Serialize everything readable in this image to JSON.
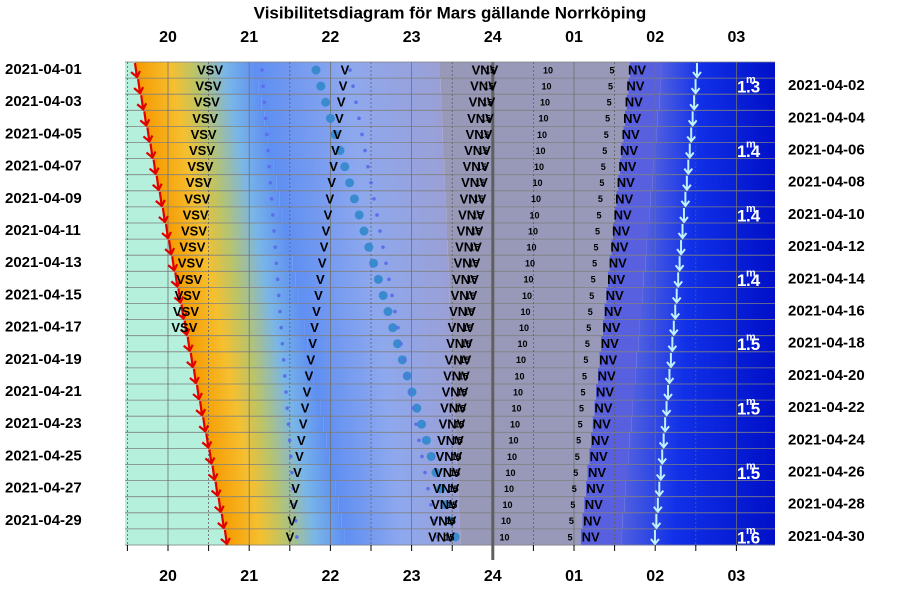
{
  "header": {
    "title": "Visibilitetsdiagram för Mars gällande Norrköping"
  },
  "hours": [
    "20",
    "21",
    "22",
    "23",
    "24",
    "01",
    "02",
    "03"
  ],
  "dates_left": [
    "2021-04-01",
    "2021-04-03",
    "2021-04-05",
    "2021-04-07",
    "2021-04-09",
    "2021-04-11",
    "2021-04-13",
    "2021-04-15",
    "2021-04-17",
    "2021-04-19",
    "2021-04-21",
    "2021-04-23",
    "2021-04-25",
    "2021-04-27",
    "2021-04-29"
  ],
  "dates_right": [
    "2021-04-02",
    "2021-04-04",
    "2021-04-06",
    "2021-04-08",
    "2021-04-10",
    "2021-04-12",
    "2021-04-14",
    "2021-04-16",
    "2021-04-18",
    "2021-04-20",
    "2021-04-22",
    "2021-04-24",
    "2021-04-26",
    "2021-04-28",
    "2021-04-30"
  ],
  "magnitude_unit": "m",
  "magnitudes": [
    [
      "1",
      ".3"
    ],
    [
      "1",
      ".4"
    ],
    [
      "1",
      ".4"
    ],
    [
      "1",
      ".4"
    ],
    [
      "1",
      ".5"
    ],
    [
      "1",
      ".5"
    ],
    [
      "1",
      ".5"
    ],
    [
      "1",
      ".6"
    ]
  ],
  "row_labels": [
    [
      "VSV",
      "V",
      "VNV",
      "15",
      "10",
      "5",
      "NV"
    ],
    [
      "VSV",
      "V",
      "VNV",
      "15",
      "10",
      "5",
      "NV"
    ],
    [
      "VSV",
      "V",
      "VNV",
      "15",
      "10",
      "5",
      "NV"
    ],
    [
      "VSV",
      "V",
      "VNV",
      "15",
      "10",
      "5",
      "NV"
    ],
    [
      "VSV",
      "V",
      "VNV",
      "15",
      "10",
      "5",
      "NV"
    ],
    [
      "VSV",
      "V",
      "VNV",
      "15",
      "10",
      "5",
      "NV"
    ],
    [
      "VSV",
      "V",
      "VNV",
      "15",
      "10",
      "5",
      "NV"
    ],
    [
      "VSV",
      "V",
      "VNV",
      "15",
      "10",
      "5",
      "NV"
    ],
    [
      "VSV",
      "V",
      "VNV",
      "15",
      "10",
      "5",
      "NV"
    ],
    [
      "VSV",
      "V",
      "VNV",
      "15",
      "10",
      "5",
      "NV"
    ],
    [
      "VSV",
      "V",
      "VNV",
      "15",
      "10",
      "5",
      "NV"
    ],
    [
      "VSV",
      "V",
      "VNV",
      "15",
      "10",
      "5",
      "NV"
    ],
    [
      "VSV",
      "V",
      "VNV",
      "15",
      "10",
      "5",
      "NV"
    ],
    [
      "VSV",
      "V",
      "VNV",
      "15",
      "10",
      "5",
      "NV"
    ],
    [
      "VSV",
      "V",
      "VNV",
      "15",
      "10",
      "5",
      "NV"
    ],
    [
      "VSV",
      "V",
      "VNV",
      "15",
      "10",
      "5",
      "NV"
    ],
    [
      "VSV",
      "V",
      "VNV",
      "15",
      "10",
      "5",
      "NV"
    ],
    [
      "V",
      "VNV",
      "15",
      "10",
      "5",
      "NV"
    ],
    [
      "V",
      "VNV",
      "15",
      "10",
      "5",
      "NV"
    ],
    [
      "V",
      "VNV",
      "15",
      "10",
      "5",
      "NV"
    ],
    [
      "V",
      "VNV",
      "15",
      "10",
      "5",
      "NV"
    ],
    [
      "V",
      "VNV",
      "15",
      "10",
      "5",
      "NV"
    ],
    [
      "V",
      "VNV",
      "15",
      "10",
      "5",
      "NV"
    ],
    [
      "V",
      "VNV",
      "15",
      "10",
      "5",
      "NV"
    ],
    [
      "V",
      "VNV",
      "15",
      "10",
      "5",
      "NV"
    ],
    [
      "V",
      "VNV",
      "15",
      "10",
      "5",
      "NV"
    ],
    [
      "V",
      "VNV",
      "15",
      "10",
      "5",
      "NV"
    ],
    [
      "V",
      "VNV",
      "15",
      "10",
      "5",
      "NV"
    ],
    [
      "V",
      "VNV",
      "15",
      "10",
      "5",
      "NV"
    ],
    [
      "V",
      "VNV",
      "15",
      "10",
      "5",
      "NV"
    ]
  ]
}
